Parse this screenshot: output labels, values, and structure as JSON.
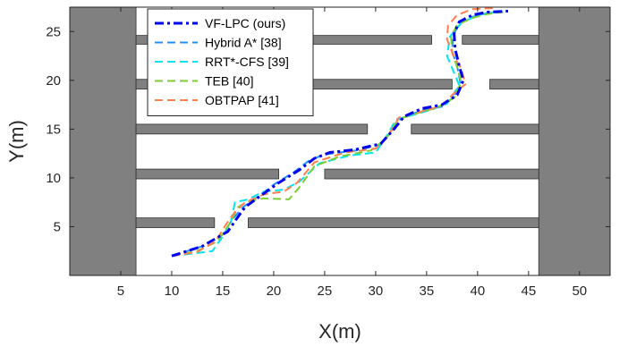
{
  "chart_data": {
    "type": "line",
    "xlabel": "X(m)",
    "ylabel": "Y(m)",
    "xlim": [
      0,
      53
    ],
    "ylim": [
      0,
      27.5
    ],
    "xticks": [
      5,
      10,
      15,
      20,
      25,
      30,
      35,
      40,
      45,
      50
    ],
    "yticks": [
      5,
      10,
      15,
      20,
      25
    ],
    "grid": false,
    "legend_position": "top-left",
    "colors": {
      "obstacle": "#808080",
      "axis": "#262626"
    },
    "obstacles": [
      {
        "x0": 0,
        "x1": 6.5,
        "y0": 0,
        "y1": 27.5
      },
      {
        "x0": 46,
        "x1": 53,
        "y0": 0,
        "y1": 27.5
      },
      {
        "x0": 6.5,
        "x1": 35.5,
        "y0": 23.7,
        "y1": 24.6
      },
      {
        "x0": 38.5,
        "x1": 46,
        "y0": 23.7,
        "y1": 24.6
      },
      {
        "x0": 6.5,
        "x1": 37.5,
        "y0": 19.1,
        "y1": 20.1
      },
      {
        "x0": 41.2,
        "x1": 46,
        "y0": 19.1,
        "y1": 20.1
      },
      {
        "x0": 6.5,
        "x1": 29.2,
        "y0": 14.5,
        "y1": 15.5
      },
      {
        "x0": 33.5,
        "x1": 46,
        "y0": 14.5,
        "y1": 15.5
      },
      {
        "x0": 6.5,
        "x1": 20.5,
        "y0": 9.9,
        "y1": 10.9
      },
      {
        "x0": 25,
        "x1": 46,
        "y0": 9.9,
        "y1": 10.9
      },
      {
        "x0": 6.5,
        "x1": 14.2,
        "y0": 4.9,
        "y1": 5.9
      },
      {
        "x0": 17.5,
        "x1": 46,
        "y0": 4.9,
        "y1": 5.9
      }
    ],
    "series": [
      {
        "name": "VF-LPC (ours)",
        "color": "#0000ee",
        "dash": "dashdot",
        "width": 3,
        "x": [
          10,
          13,
          15.5,
          16.5,
          17.2,
          18.5,
          20.5,
          22.5,
          24,
          25.5,
          28,
          30.5,
          31.8,
          32.8,
          34.5,
          36.5,
          38,
          38.6,
          38.2,
          37.8,
          37.7,
          38.2,
          39.5,
          41,
          43
        ],
        "y": [
          2,
          3,
          4.5,
          6,
          7,
          8,
          9.5,
          10.8,
          12,
          12.6,
          12.9,
          13.5,
          15,
          16.3,
          17.1,
          17.5,
          18.5,
          20,
          21.5,
          23.2,
          24.8,
          26,
          26.7,
          27,
          27.1
        ]
      },
      {
        "name": "Hybrid A* [38]",
        "color": "#1e90ff",
        "dash": "dash",
        "width": 2,
        "x": [
          10,
          13,
          15,
          16,
          17,
          18.5,
          20,
          22,
          23.5,
          25,
          28,
          30.5,
          31.6,
          32.5,
          34.5,
          36.5,
          37.7,
          38.3,
          38,
          37.5,
          37.6,
          38.2,
          39.5,
          41,
          42.5
        ],
        "y": [
          2,
          3,
          4.2,
          5.8,
          7,
          8.1,
          9.3,
          10.6,
          11.8,
          12.4,
          12.8,
          13.4,
          14.8,
          16.1,
          16.9,
          17.3,
          18.3,
          19.8,
          21.4,
          23,
          24.6,
          25.8,
          26.5,
          26.9,
          27
        ]
      },
      {
        "name": "RRT*-CFS [39]",
        "color": "#00e5ee",
        "dash": "dash",
        "width": 2,
        "x": [
          10,
          12.5,
          14,
          15,
          15.8,
          16.2,
          17.5,
          19,
          21,
          22.5,
          24.5,
          27.5,
          30,
          31.2,
          32,
          33.5,
          35.5,
          37,
          38.2,
          37.6,
          37,
          37.3,
          38.5,
          40.5,
          42.5
        ],
        "y": [
          2,
          2.3,
          2.5,
          4,
          5.5,
          7.5,
          7.8,
          8.6,
          8.8,
          9.6,
          11.5,
          12.3,
          12.6,
          14.5,
          16,
          16.4,
          17,
          17.6,
          19.5,
          21,
          22.5,
          24.5,
          26,
          26.8,
          27.1
        ]
      },
      {
        "name": "TEB [40]",
        "color": "#7ccd32",
        "dash": "dash",
        "width": 2,
        "x": [
          10,
          12.5,
          14.5,
          15.8,
          16.5,
          17.5,
          19,
          21.5,
          22.5,
          24,
          26.5,
          29.5,
          31,
          32.2,
          34,
          36,
          37.7,
          38.4,
          38,
          37.5,
          37.4,
          38,
          39.5,
          41,
          42.5
        ],
        "y": [
          2,
          2.5,
          3.5,
          5.5,
          7,
          7.6,
          7.9,
          7.8,
          9,
          11.2,
          12.2,
          12.8,
          14,
          16,
          16.6,
          17.2,
          18.2,
          19.8,
          21.3,
          22.9,
          24.5,
          25.7,
          26.4,
          26.8,
          27
        ]
      },
      {
        "name": "OBTPAP [41]",
        "color": "#ff7f50",
        "dash": "dash",
        "width": 2,
        "x": [
          10,
          12.5,
          14.3,
          15.3,
          16.2,
          17.2,
          19,
          21,
          22.3,
          24,
          27,
          30,
          31.3,
          32.3,
          34.5,
          36.5,
          37.5,
          38.8,
          38.4,
          37.6,
          37,
          37.1,
          38,
          39.5,
          41.5
        ],
        "y": [
          2,
          2.4,
          3.5,
          5.2,
          6.5,
          7.5,
          8.3,
          8.6,
          9.5,
          11.6,
          12.6,
          13,
          14.4,
          16.2,
          16.8,
          17.4,
          18.5,
          19.6,
          21.2,
          22.6,
          24.2,
          25.6,
          26.7,
          27.3,
          27.4
        ]
      }
    ]
  }
}
